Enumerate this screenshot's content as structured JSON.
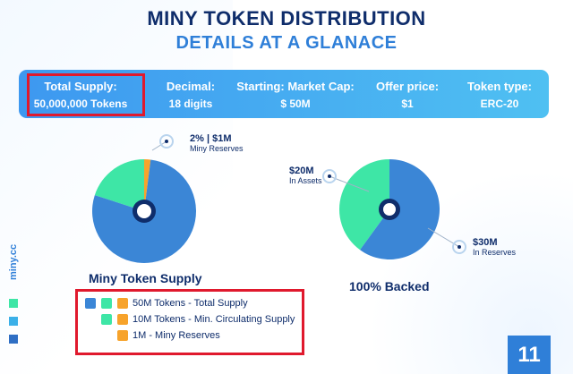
{
  "header": {
    "title": "MINY TOKEN DISTRIBUTION",
    "subtitle": "DETAILS AT A GLANACE"
  },
  "stats": [
    {
      "label": "Total Supply:",
      "value": "50,000,000 Tokens"
    },
    {
      "label": "Decimal:",
      "value": "18 digits"
    },
    {
      "label": "Starting: Market Cap:",
      "value": "$ 50M"
    },
    {
      "label": "Offer price:",
      "value": "$1"
    },
    {
      "label": "Token type:",
      "value": "ERC-20"
    }
  ],
  "left_chart": {
    "caption": "Miny Token Supply",
    "callout_value": "2% | $1M",
    "callout_label": "Miny Reserves",
    "slices": [
      {
        "share": 0.2,
        "color": "#3ee6a6"
      },
      {
        "share": 0.02,
        "color": "#f7a32b"
      },
      {
        "share": 0.78,
        "color": "#3b86d6"
      }
    ]
  },
  "right_chart": {
    "caption": "100% Backed",
    "callout_assets_value": "$20M",
    "callout_assets_label": "In Assets",
    "callout_reserves_value": "$30M",
    "callout_reserves_label": "In Reserves",
    "slices": [
      {
        "share": 0.4,
        "color": "#3ee6a6"
      },
      {
        "share": 0.6,
        "color": "#3b86d6"
      }
    ]
  },
  "legend": [
    {
      "text": "50M Tokens - Total Supply"
    },
    {
      "text": "10M Tokens - Min. Circulating Supply"
    },
    {
      "text": "1M - Miny Reserves"
    }
  ],
  "side": {
    "text": "miny.cc"
  },
  "page": {
    "number": "11"
  },
  "colors": {
    "navy": "#0f2d6b",
    "blue": "#3b86d6",
    "green": "#3ee6a6",
    "orange": "#f7a32b",
    "highlight": "#e0192d"
  }
}
